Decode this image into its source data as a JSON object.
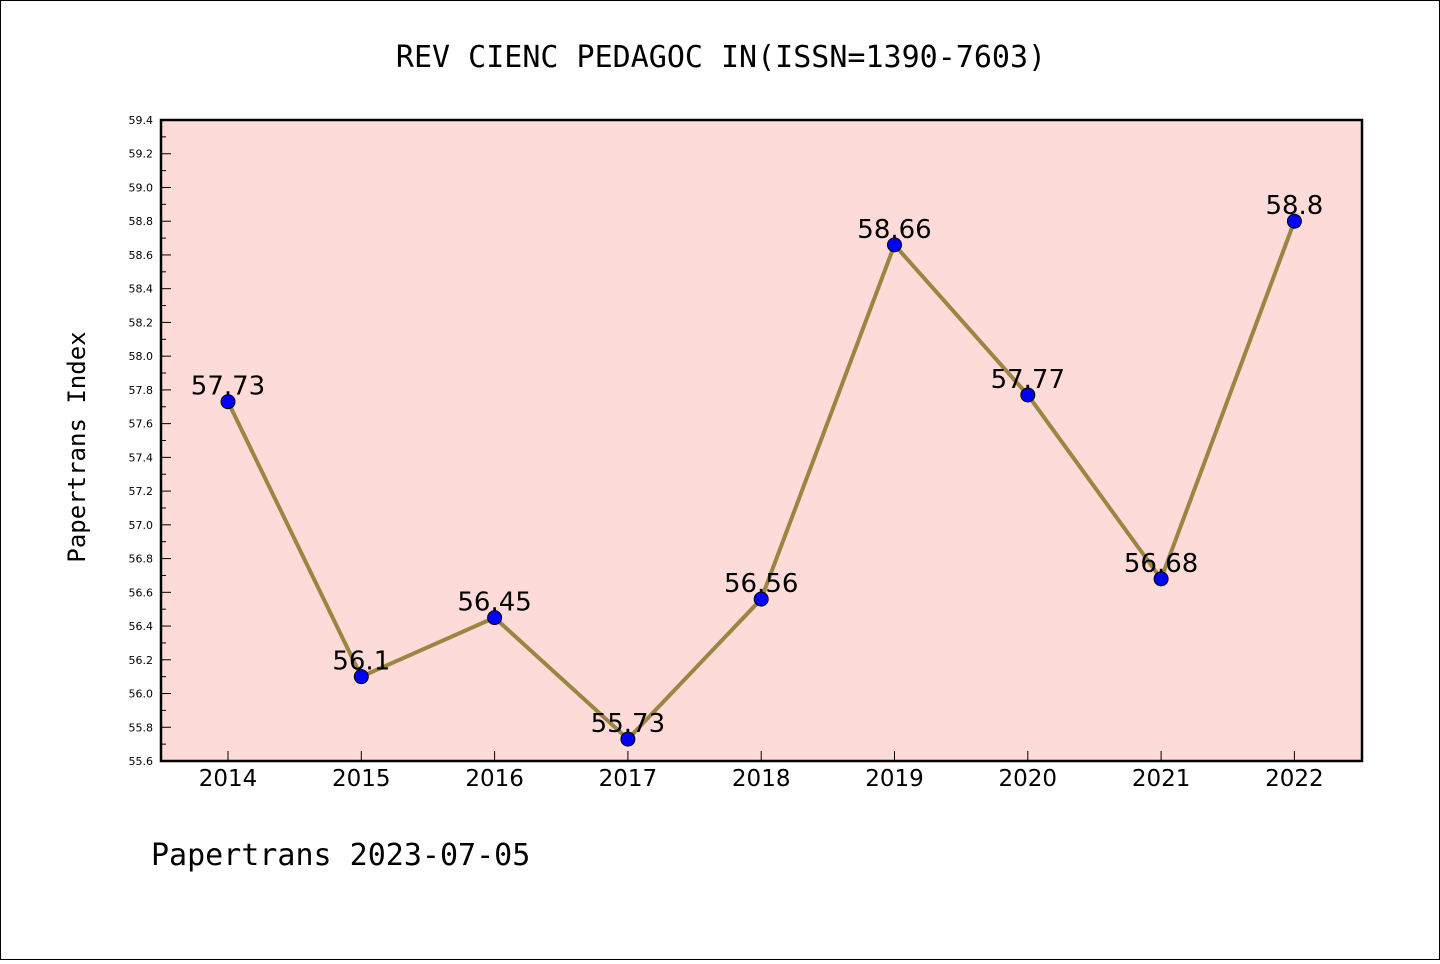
{
  "chart_data": {
    "type": "line",
    "title": "REV CIENC PEDAGOC IN(ISSN=1390-7603)",
    "ylabel": "Papertrans Index",
    "xlabel": "",
    "categories": [
      "2014",
      "2015",
      "2016",
      "2017",
      "2018",
      "2019",
      "2020",
      "2021",
      "2022"
    ],
    "values": [
      57.73,
      56.1,
      56.45,
      55.73,
      56.56,
      58.66,
      57.77,
      56.68,
      58.8
    ],
    "value_labels": [
      "57.73",
      "56.1",
      "56.45",
      "55.73",
      "56.56",
      "58.66",
      "57.77",
      "56.68",
      "58.8"
    ],
    "ylim": [
      55.6,
      59.4
    ],
    "yticks": [
      "55.6",
      "55.8",
      "56.0",
      "56.2",
      "56.4",
      "56.6",
      "56.8",
      "57.0",
      "57.2",
      "57.4",
      "57.6",
      "57.8",
      "58.0",
      "58.2",
      "58.4",
      "58.6",
      "58.8",
      "59.0",
      "59.2",
      "59.4"
    ],
    "grid": false,
    "colors": {
      "plot_background": "#fddbd8",
      "line": "#9b8540",
      "marker": "#0000ff"
    }
  },
  "footer": "Papertrans 2023-07-05"
}
